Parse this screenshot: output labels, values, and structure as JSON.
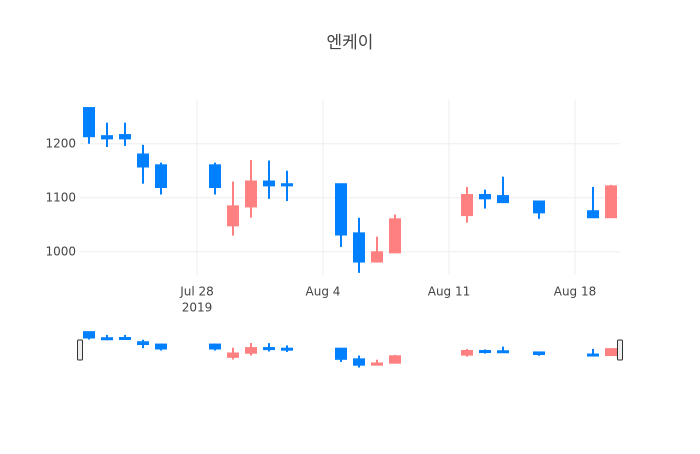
{
  "chart_data": {
    "type": "candlestick",
    "title": "엔케이",
    "x": [
      "2019-07-22",
      "2019-07-23",
      "2019-07-24",
      "2019-07-25",
      "2019-07-26",
      "2019-07-29",
      "2019-07-30",
      "2019-07-31",
      "2019-08-01",
      "2019-08-02",
      "2019-08-05",
      "2019-08-06",
      "2019-08-07",
      "2019-08-08",
      "2019-08-12",
      "2019-08-13",
      "2019-08-14",
      "2019-08-16",
      "2019-08-19",
      "2019-08-20"
    ],
    "open": [
      1267,
      1215,
      1217,
      1181,
      1161,
      1161,
      1048,
      1083,
      1131,
      1126,
      1126,
      1035,
      981,
      998,
      1067,
      1106,
      1104,
      1094,
      1076,
      1063
    ],
    "high": [
      1267,
      1239,
      1239,
      1198,
      1165,
      1165,
      1130,
      1170,
      1169,
      1150,
      1126,
      1063,
      1028,
      1069,
      1120,
      1115,
      1139,
      1094,
      1120,
      1124
    ],
    "low": [
      1200,
      1194,
      1196,
      1126,
      1106,
      1106,
      1030,
      1063,
      1098,
      1094,
      1009,
      961,
      981,
      998,
      1054,
      1080,
      1091,
      1061,
      1063,
      1063
    ],
    "close": [
      1213,
      1209,
      1209,
      1157,
      1119,
      1119,
      1085,
      1131,
      1122,
      1122,
      1031,
      981,
      1000,
      1061,
      1106,
      1098,
      1091,
      1072,
      1063,
      1122
    ],
    "increasing_color": "#ff8080",
    "decreasing_color": "#0080ff",
    "xlim": [
      "2019-07-21T12:00",
      "2019-08-20T12:00"
    ],
    "xticks": [
      {
        "value": "2019-07-28",
        "label": "Jul 28"
      },
      {
        "value": "2019-08-04",
        "label": "Aug 4"
      },
      {
        "value": "2019-08-11",
        "label": "Aug 11"
      },
      {
        "value": "2019-08-18",
        "label": "Aug 18"
      }
    ],
    "x_year_label": "2019",
    "ylim": [
      957,
      1281
    ],
    "yticks": [
      1000,
      1100,
      1200
    ],
    "grid": true,
    "rangeslider": true
  }
}
